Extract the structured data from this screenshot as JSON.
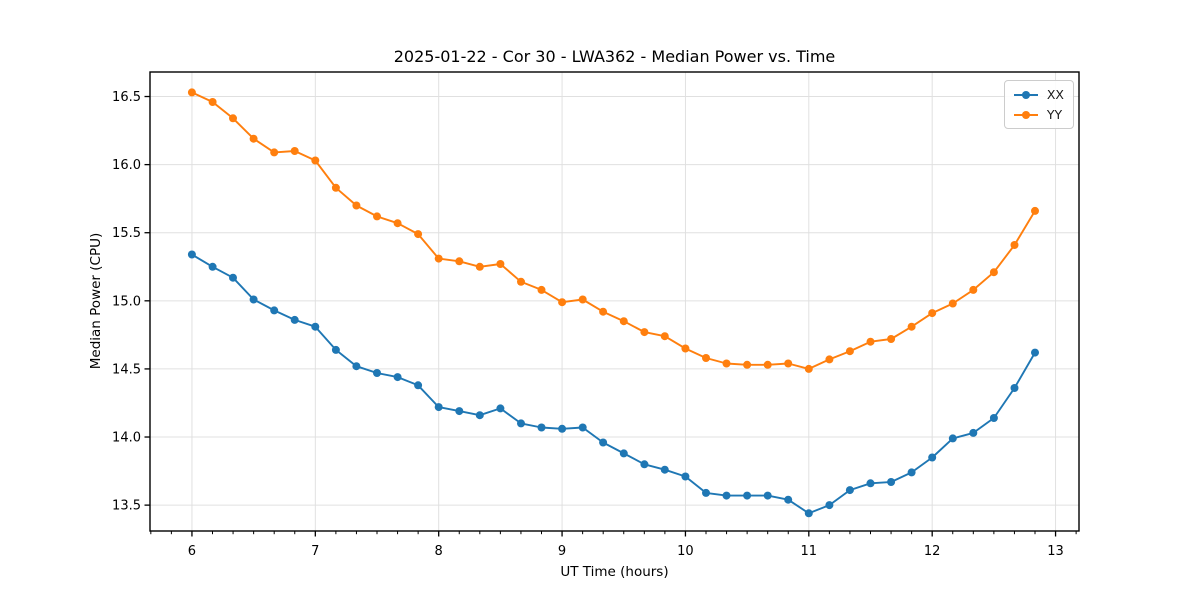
{
  "chart_data": {
    "type": "line",
    "title": "2025-01-22 - Cor 30 - LWA362 - Median Power vs. Time",
    "xlabel": "UT Time (hours)",
    "ylabel": "Median Power (CPU)",
    "x": [
      6.0,
      6.167,
      6.333,
      6.5,
      6.667,
      6.833,
      7.0,
      7.167,
      7.333,
      7.5,
      7.667,
      7.833,
      8.0,
      8.167,
      8.333,
      8.5,
      8.667,
      8.833,
      9.0,
      9.167,
      9.333,
      9.5,
      9.667,
      9.833,
      10.0,
      10.167,
      10.333,
      10.5,
      10.667,
      10.833,
      11.0,
      11.167,
      11.333,
      11.5,
      11.667,
      11.833,
      12.0,
      12.167,
      12.333,
      12.5,
      12.667,
      12.833
    ],
    "series": [
      {
        "name": "XX",
        "color": "#1f77b4",
        "values": [
          15.34,
          15.25,
          15.17,
          15.01,
          14.93,
          14.86,
          14.81,
          14.64,
          14.52,
          14.47,
          14.44,
          14.38,
          14.22,
          14.19,
          14.16,
          14.21,
          14.1,
          14.07,
          14.06,
          14.07,
          13.96,
          13.88,
          13.8,
          13.76,
          13.71,
          13.59,
          13.57,
          13.57,
          13.57,
          13.54,
          13.44,
          13.5,
          13.61,
          13.66,
          13.67,
          13.74,
          13.85,
          13.99,
          14.03,
          14.14,
          14.36,
          14.62
        ]
      },
      {
        "name": "YY",
        "color": "#ff7f0e",
        "values": [
          16.53,
          16.46,
          16.34,
          16.19,
          16.09,
          16.1,
          16.03,
          15.83,
          15.7,
          15.62,
          15.57,
          15.49,
          15.31,
          15.29,
          15.25,
          15.27,
          15.14,
          15.08,
          14.99,
          15.01,
          14.92,
          14.85,
          14.77,
          14.74,
          14.65,
          14.58,
          14.54,
          14.53,
          14.53,
          14.54,
          14.5,
          14.57,
          14.63,
          14.7,
          14.72,
          14.81,
          14.91,
          14.98,
          15.08,
          15.21,
          15.41,
          15.66
        ]
      }
    ],
    "xlim": [
      5.66,
      13.19
    ],
    "ylim": [
      13.31,
      16.68
    ],
    "xticks": [
      6,
      7,
      8,
      9,
      10,
      11,
      12,
      13
    ],
    "yticks": [
      "13.5",
      "14.0",
      "14.5",
      "15.0",
      "15.5",
      "16.0",
      "16.5"
    ],
    "minor_xtick_step": 0.16667,
    "grid": true,
    "legend_position": "upper right",
    "marker": "circle"
  },
  "style": {
    "grid_color": "#e0e0e0",
    "spine_color": "#000000",
    "tick_color": "#000000",
    "text_color": "#000000",
    "line_width": 1.9,
    "marker_radius": 4
  }
}
